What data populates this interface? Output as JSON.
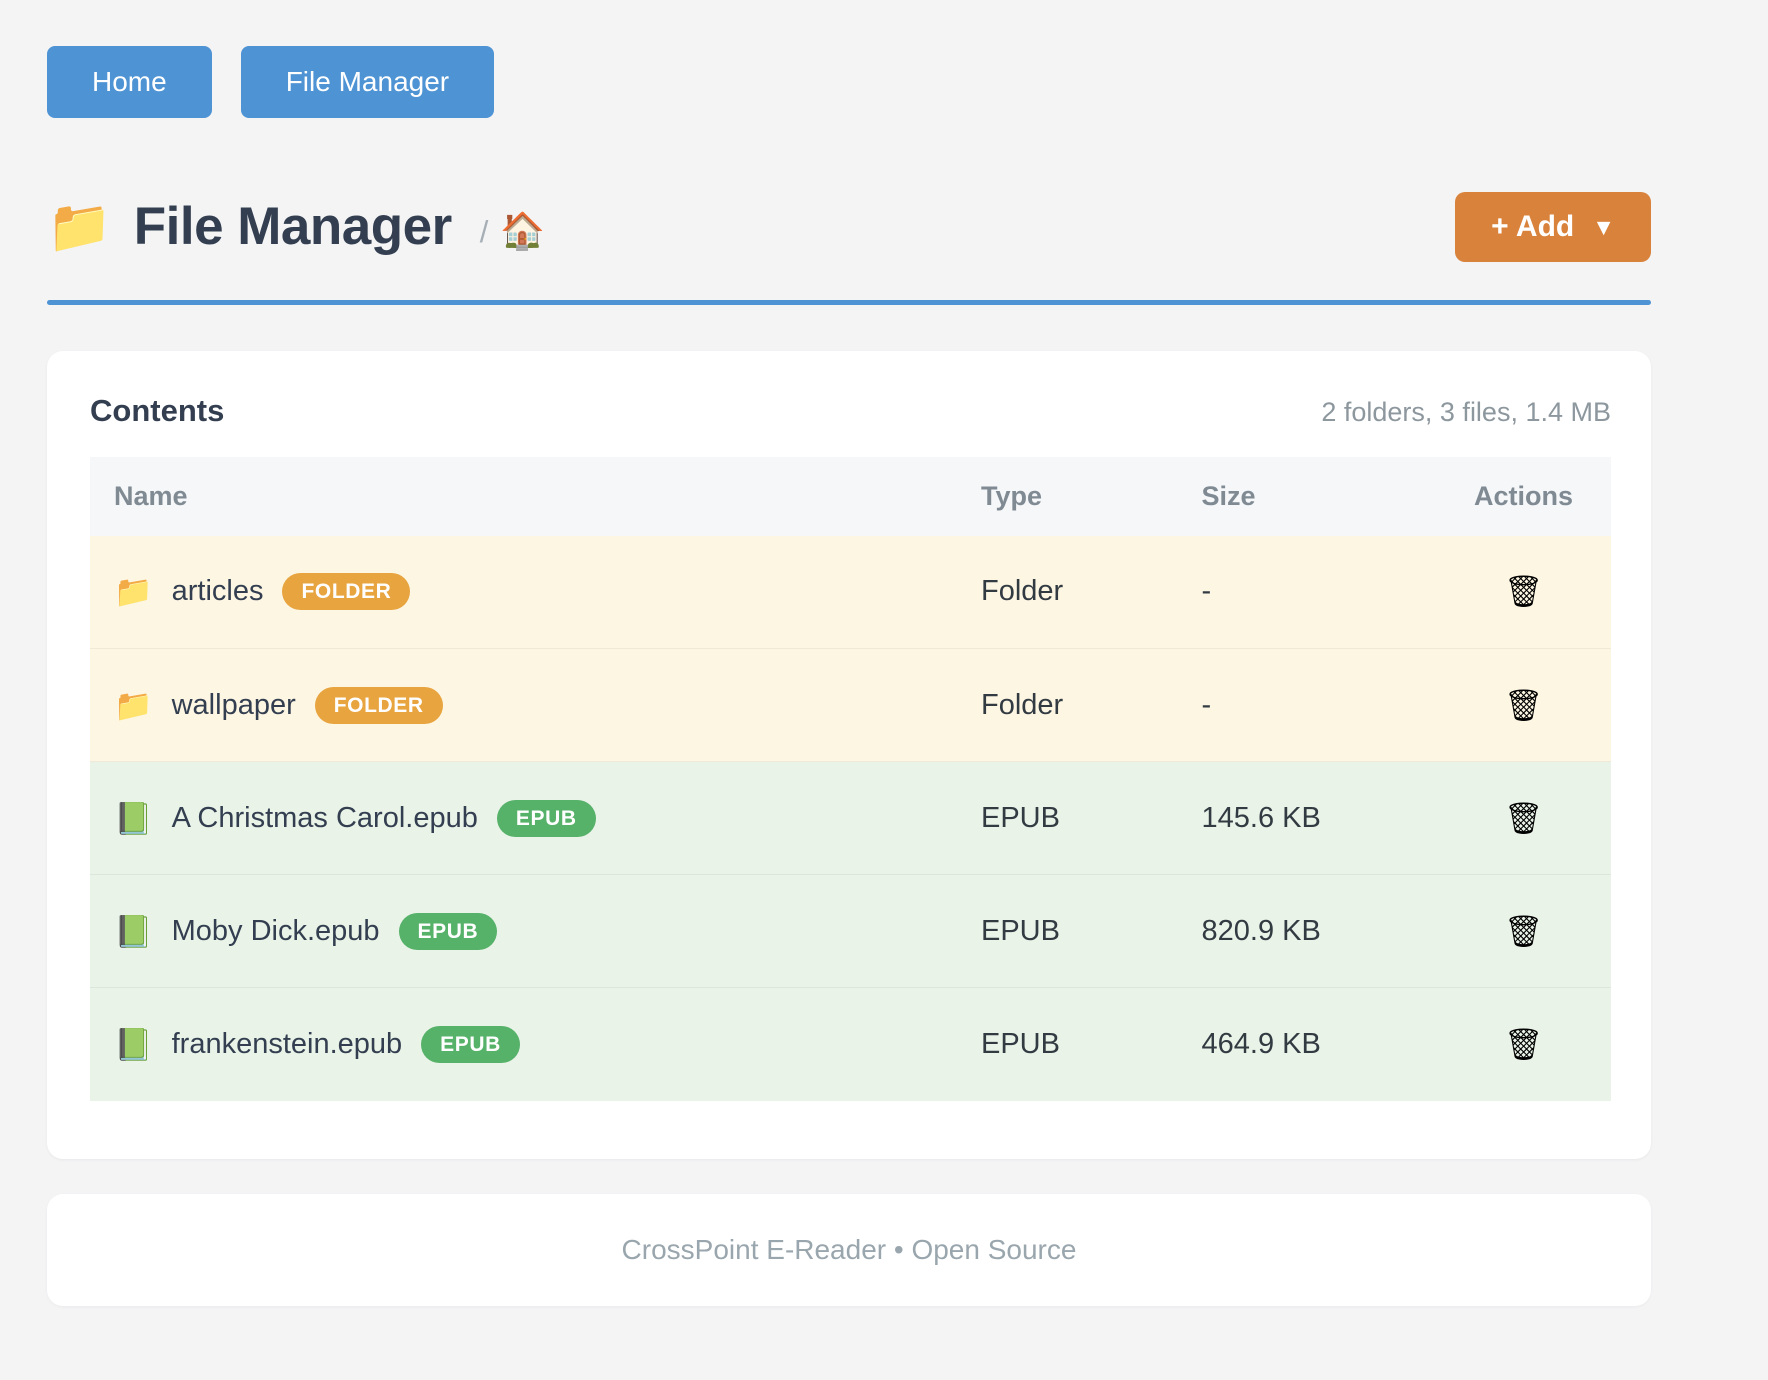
{
  "nav": {
    "home_label": "Home",
    "file_manager_label": "File Manager"
  },
  "header": {
    "title": "File Manager",
    "title_icon": "📁",
    "breadcrumb_separator": "/",
    "breadcrumb_home_icon": "🏠",
    "add_button_label": "+ Add",
    "add_button_caret": "▼"
  },
  "contents": {
    "heading": "Contents",
    "summary": "2 folders, 3 files, 1.4 MB",
    "columns": {
      "name": "Name",
      "type": "Type",
      "size": "Size",
      "actions": "Actions"
    },
    "action_icon": "🗑",
    "rows": [
      {
        "icon": "📁",
        "name": "articles",
        "badge": "FOLDER",
        "type": "Folder",
        "size": "-"
      },
      {
        "icon": "📁",
        "name": "wallpaper",
        "badge": "FOLDER",
        "type": "Folder",
        "size": "-"
      },
      {
        "icon": "📗",
        "name": "A Christmas Carol.epub",
        "badge": "EPUB",
        "type": "EPUB",
        "size": "145.6 KB"
      },
      {
        "icon": "📗",
        "name": "Moby Dick.epub",
        "badge": "EPUB",
        "type": "EPUB",
        "size": "820.9 KB"
      },
      {
        "icon": "📗",
        "name": "frankenstein.epub",
        "badge": "EPUB",
        "type": "EPUB",
        "size": "464.9 KB"
      }
    ]
  },
  "footer": {
    "text": "CrossPoint E-Reader • Open Source"
  },
  "colors": {
    "primary_blue": "#4e93d3",
    "accent_orange": "#d9823b",
    "badge_folder": "#e8a43e",
    "badge_epub": "#56b169",
    "row_folder_bg": "#fdf6e3",
    "row_epub_bg": "#e9f3e8"
  }
}
